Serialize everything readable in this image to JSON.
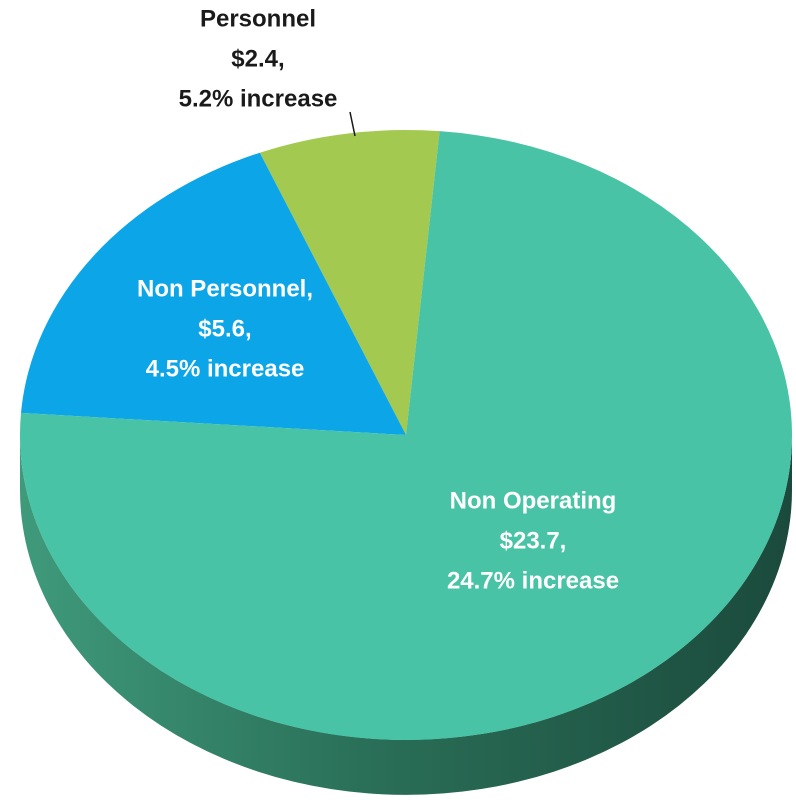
{
  "chart_data": {
    "type": "pie",
    "categories": [
      "Personnel",
      "Non Personnel,",
      "Non Operating"
    ],
    "values": [
      2.4,
      5.6,
      23.7
    ],
    "value_labels": [
      "$2.4,",
      "$5.6,",
      "$23.7,"
    ],
    "annotations": [
      "5.2% increase",
      "4.5% increase",
      "24.7% increase"
    ],
    "colors": [
      "#a3c951",
      "#0ba5e8",
      "#49c3a5"
    ]
  }
}
